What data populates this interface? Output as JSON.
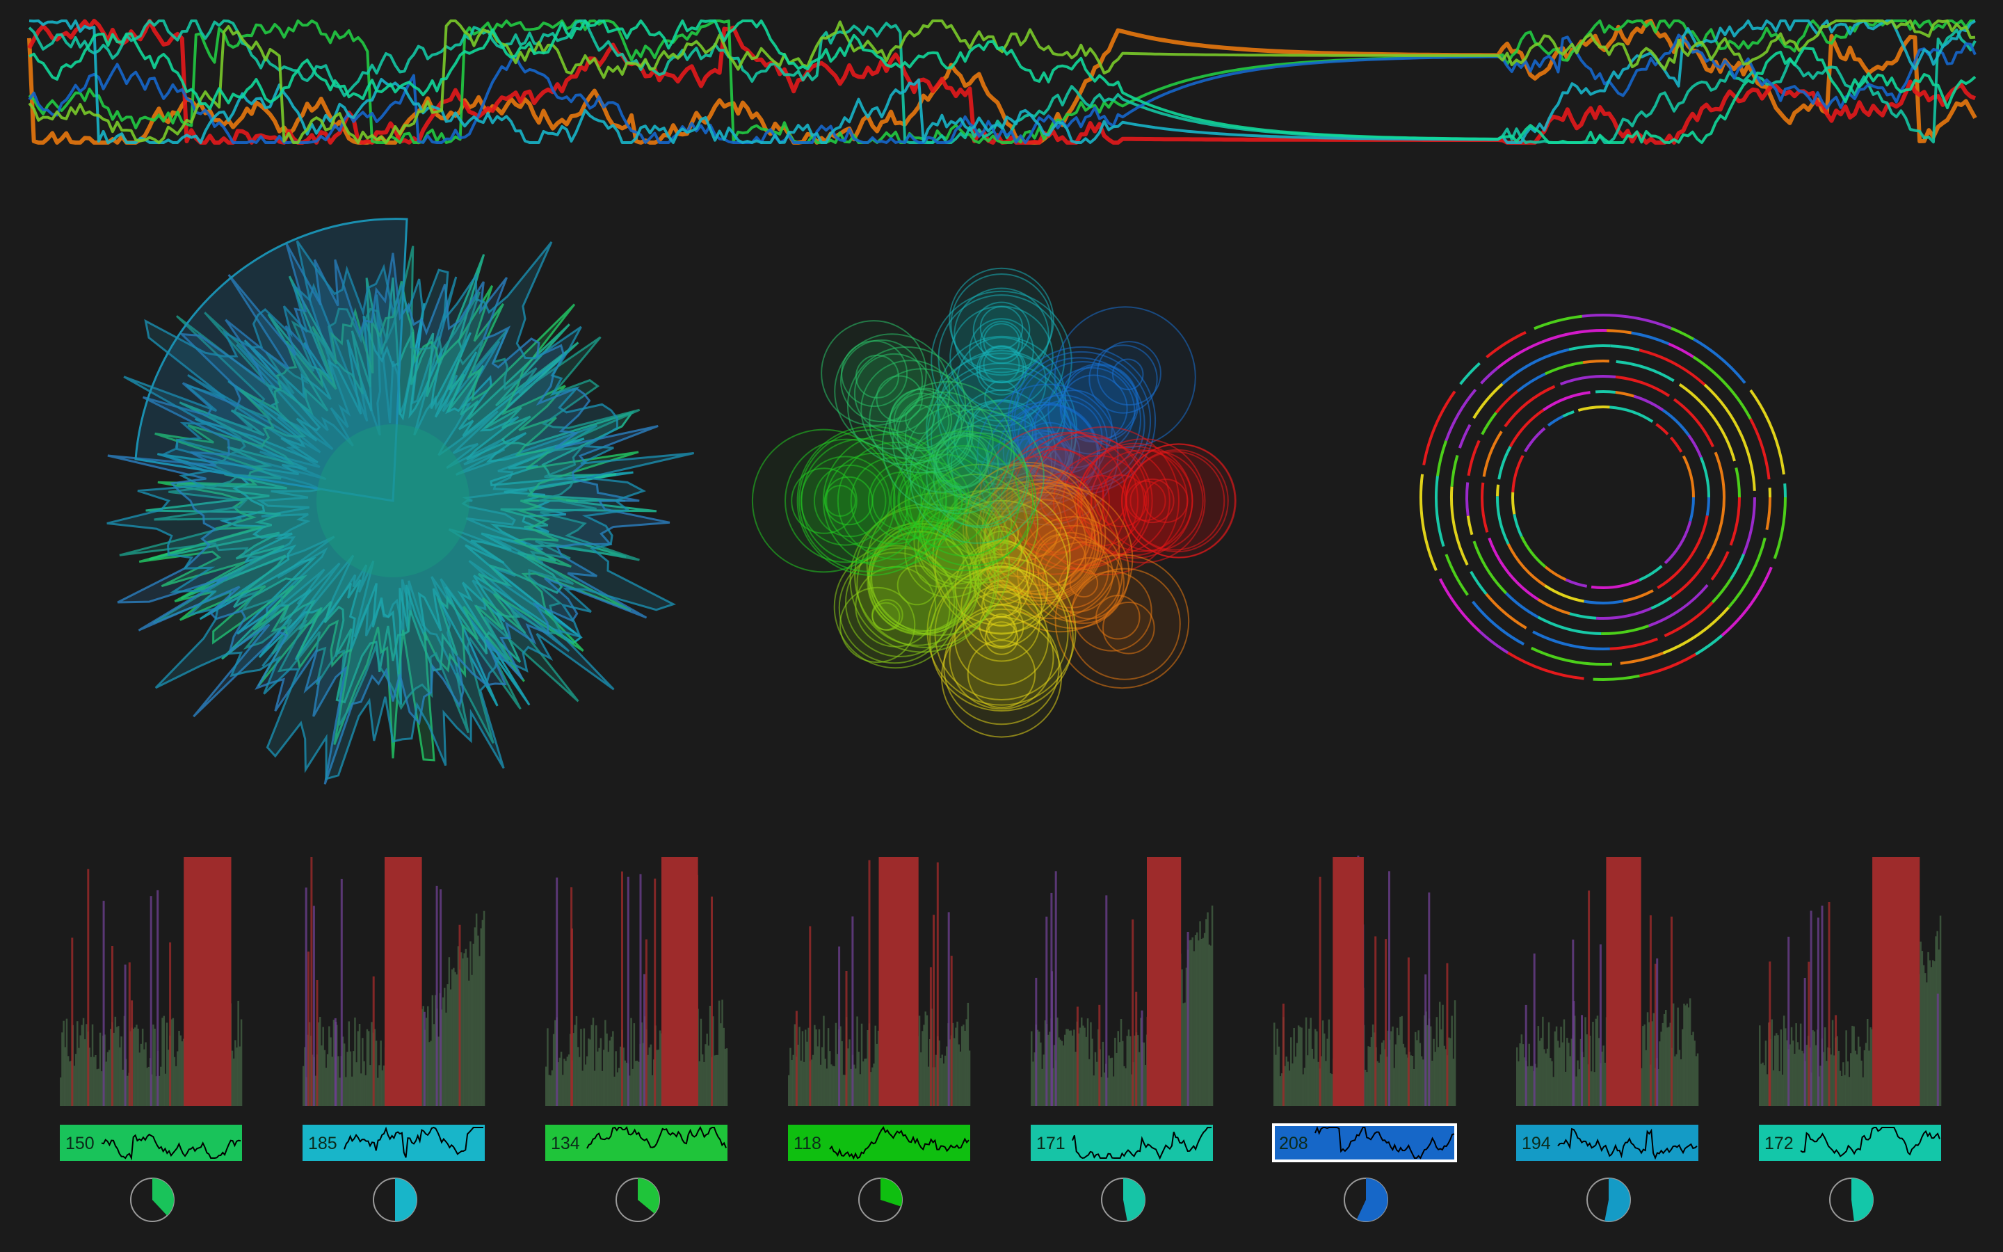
{
  "colors": {
    "background": "#1b1b1b",
    "red": "#e41a1c",
    "orange": "#e8780e",
    "green": "#22cc44",
    "teal": "#14c7a4",
    "blue": "#1667cc",
    "cyan": "#18b5c9",
    "bar_red": "#9e2b2b",
    "bar_purple": "#6a3f8c",
    "bar_green": "#3f5a3f",
    "selected_border": "#ffffff"
  },
  "panels": [
    {
      "value": "150",
      "color": "#19c35a",
      "progress": 0.38,
      "selected": false
    },
    {
      "value": "185",
      "color": "#18b5c9",
      "progress": 0.5,
      "selected": false
    },
    {
      "value": "134",
      "color": "#1fc43a",
      "progress": 0.36,
      "selected": false
    },
    {
      "value": "118",
      "color": "#0fbf10",
      "progress": 0.3,
      "selected": false
    },
    {
      "value": "171",
      "color": "#16c4a6",
      "progress": 0.47,
      "selected": false
    },
    {
      "value": "208",
      "color": "#1667c8",
      "progress": 0.57,
      "selected": true
    },
    {
      "value": "194",
      "color": "#149bc6",
      "progress": 0.53,
      "selected": false
    },
    {
      "value": "172",
      "color": "#13c7a9",
      "progress": 0.48,
      "selected": false
    }
  ]
}
